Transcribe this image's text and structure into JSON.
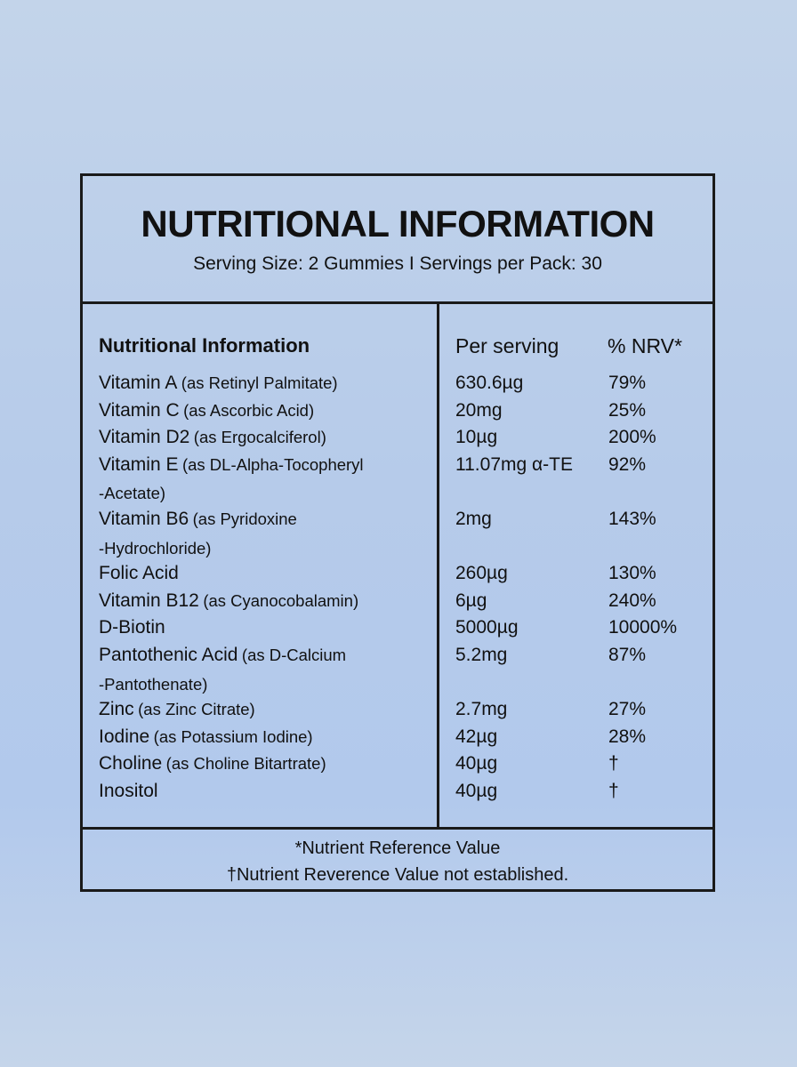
{
  "header": {
    "title": "NUTRITIONAL INFORMATION",
    "subtitle": "Serving Size: 2 Gummies  I  Servings per Pack: 30"
  },
  "table": {
    "col_name": "Nutritional Information",
    "col_per": "Per serving",
    "col_nrv": "% NRV*",
    "rows": [
      {
        "name": "Vitamin A",
        "note": "(as Retinyl Palmitate)",
        "note2": "",
        "per": "630.6µg",
        "nrv": "79%"
      },
      {
        "name": "Vitamin C",
        "note": "(as Ascorbic Acid)",
        "note2": "",
        "per": "20mg",
        "nrv": "25%"
      },
      {
        "name": "Vitamin D2",
        "note": "(as Ergocalciferol)",
        "note2": "",
        "per": "10µg",
        "nrv": "200%"
      },
      {
        "name": "Vitamin E",
        "note": "(as DL-Alpha-Tocopheryl",
        "note2": "-Acetate)",
        "per": "11.07mg α-TE",
        "nrv": "92%"
      },
      {
        "name": "Vitamin B6",
        "note": "(as Pyridoxine",
        "note2": "-Hydrochloride)",
        "per": "2mg",
        "nrv": "143%"
      },
      {
        "name": "Folic Acid",
        "note": "",
        "note2": "",
        "per": "260µg",
        "nrv": "130%"
      },
      {
        "name": "Vitamin B12",
        "note": "(as Cyanocobalamin)",
        "note2": "",
        "per": "6µg",
        "nrv": "240%"
      },
      {
        "name": "D-Biotin",
        "note": "",
        "note2": "",
        "per": "5000µg",
        "nrv": "10000%"
      },
      {
        "name": "Pantothenic Acid",
        "note": "(as D-Calcium",
        "note2": "-Pantothenate)",
        "per": "5.2mg",
        "nrv": "87%"
      },
      {
        "name": "Zinc",
        "note": "(as Zinc Citrate)",
        "note2": "",
        "per": "2.7mg",
        "nrv": "27%"
      },
      {
        "name": "Iodine",
        "note": "(as Potassium Iodine)",
        "note2": "",
        "per": "42µg",
        "nrv": "28%"
      },
      {
        "name": "Choline",
        "note": "(as Choline Bitartrate)",
        "note2": "",
        "per": "40µg",
        "nrv": "†"
      },
      {
        "name": "Inositol",
        "note": "",
        "note2": "",
        "per": "40µg",
        "nrv": "†"
      }
    ]
  },
  "footer": {
    "note1": "*Nutrient Reference Value",
    "note2": "†Nutrient Reverence Value not established."
  }
}
